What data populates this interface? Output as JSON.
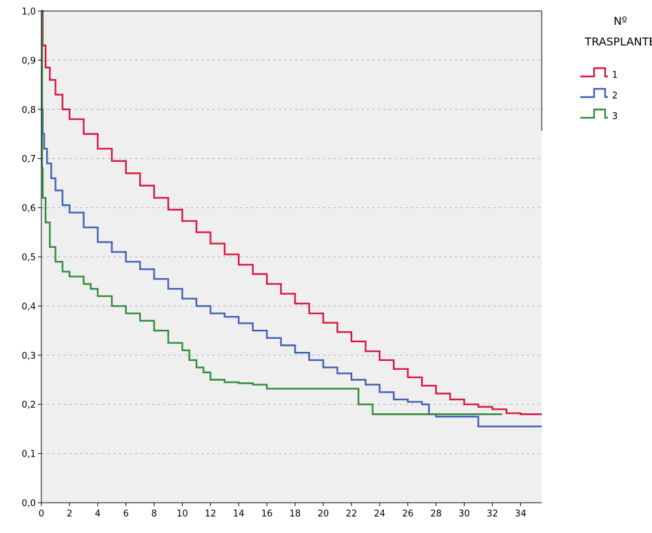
{
  "chart_data": {
    "type": "line",
    "title": "",
    "xlabel": "",
    "ylabel": "",
    "xlim": [
      0,
      35.5
    ],
    "ylim": [
      0,
      1
    ],
    "x_ticks": [
      "0",
      "2",
      "4",
      "6",
      "8",
      "10",
      "12",
      "14",
      "16",
      "18",
      "20",
      "22",
      "24",
      "26",
      "28",
      "30",
      "32",
      "34"
    ],
    "y_ticks": [
      "0,0",
      "0,1",
      "0,2",
      "0,3",
      "0,4",
      "0,5",
      "0,6",
      "0,7",
      "0,8",
      "0,9",
      "1,0"
    ],
    "grid": "horizontal dashed",
    "plot_background": "#efefef",
    "legend": {
      "title_lines": [
        "Nº",
        "TRASPLANTE"
      ],
      "position": "right"
    },
    "series": [
      {
        "name": "1",
        "color": "#d6153f",
        "x": [
          0,
          0.1,
          0.3,
          0.6,
          1,
          1.5,
          2,
          3,
          4,
          5,
          6,
          7,
          8,
          9,
          10,
          11,
          12,
          13,
          14,
          15,
          16,
          17,
          18,
          19,
          20,
          21,
          22,
          23,
          24,
          25,
          26,
          27,
          28,
          29,
          30,
          31,
          32,
          33,
          34,
          35.5
        ],
        "y": [
          1.0,
          0.93,
          0.885,
          0.86,
          0.83,
          0.8,
          0.78,
          0.75,
          0.72,
          0.695,
          0.67,
          0.645,
          0.62,
          0.596,
          0.573,
          0.55,
          0.527,
          0.505,
          0.484,
          0.465,
          0.445,
          0.425,
          0.405,
          0.385,
          0.366,
          0.347,
          0.328,
          0.308,
          0.29,
          0.272,
          0.255,
          0.238,
          0.222,
          0.21,
          0.2,
          0.195,
          0.19,
          0.182,
          0.18,
          0.18
        ]
      },
      {
        "name": "2",
        "color": "#3e5fb5",
        "x": [
          0,
          0.05,
          0.1,
          0.2,
          0.4,
          0.7,
          1,
          1.5,
          2,
          3,
          4,
          5,
          6,
          7,
          8,
          9,
          10,
          11,
          12,
          13,
          14,
          15,
          16,
          17,
          18,
          19,
          20,
          21,
          22,
          23,
          24,
          25,
          26,
          27,
          27.5,
          28,
          29,
          30,
          31,
          32,
          33,
          34,
          35.5
        ],
        "y": [
          1.0,
          0.8,
          0.75,
          0.72,
          0.69,
          0.66,
          0.635,
          0.605,
          0.59,
          0.56,
          0.53,
          0.51,
          0.49,
          0.475,
          0.455,
          0.435,
          0.415,
          0.4,
          0.385,
          0.378,
          0.365,
          0.35,
          0.335,
          0.32,
          0.305,
          0.29,
          0.275,
          0.263,
          0.25,
          0.24,
          0.225,
          0.21,
          0.205,
          0.2,
          0.18,
          0.175,
          0.175,
          0.175,
          0.155,
          0.155,
          0.155,
          0.155,
          0.155
        ]
      },
      {
        "name": "3",
        "color": "#2f8b3a",
        "x": [
          0,
          0.05,
          0.1,
          0.3,
          0.6,
          1,
          1.5,
          2,
          3,
          3.5,
          4,
          5,
          6,
          7,
          8,
          9,
          10,
          10.5,
          11,
          11.5,
          12,
          13,
          14,
          15,
          16,
          17,
          18,
          19,
          20,
          21,
          22,
          22.5,
          23,
          23.5,
          24,
          25,
          26,
          27,
          28,
          29,
          30,
          31,
          32,
          32.7
        ],
        "y": [
          1.0,
          0.68,
          0.62,
          0.57,
          0.52,
          0.49,
          0.47,
          0.46,
          0.445,
          0.435,
          0.42,
          0.4,
          0.385,
          0.37,
          0.35,
          0.325,
          0.31,
          0.29,
          0.275,
          0.265,
          0.25,
          0.245,
          0.243,
          0.24,
          0.232,
          0.232,
          0.232,
          0.232,
          0.232,
          0.232,
          0.232,
          0.2,
          0.2,
          0.18,
          0.18,
          0.18,
          0.18,
          0.18,
          0.18,
          0.18,
          0.18,
          0.18,
          0.18,
          0.18
        ]
      }
    ]
  }
}
